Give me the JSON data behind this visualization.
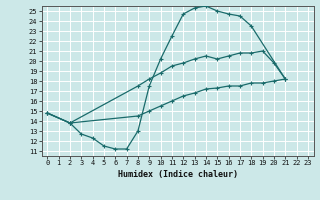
{
  "title": "",
  "xlabel": "Humidex (Indice chaleur)",
  "xlim": [
    -0.5,
    23.5
  ],
  "ylim": [
    10.5,
    25.5
  ],
  "xticks": [
    0,
    1,
    2,
    3,
    4,
    5,
    6,
    7,
    8,
    9,
    10,
    11,
    12,
    13,
    14,
    15,
    16,
    17,
    18,
    19,
    20,
    21,
    22,
    23
  ],
  "yticks": [
    11,
    12,
    13,
    14,
    15,
    16,
    17,
    18,
    19,
    20,
    21,
    22,
    23,
    24,
    25
  ],
  "bg_color": "#cce8e8",
  "grid_color": "#ffffff",
  "line_color": "#1a6b6b",
  "curve1_x": [
    0,
    2,
    3,
    4,
    5,
    6,
    7,
    8,
    9,
    10,
    11,
    12,
    13,
    14,
    15,
    16,
    17,
    18,
    21
  ],
  "curve1_y": [
    14.8,
    13.8,
    12.7,
    12.3,
    11.5,
    11.2,
    11.2,
    13.0,
    17.5,
    20.2,
    22.5,
    24.7,
    25.3,
    25.5,
    25.0,
    24.7,
    24.5,
    23.5,
    18.2
  ],
  "curve2_x": [
    0,
    2,
    8,
    9,
    10,
    11,
    12,
    13,
    14,
    15,
    16,
    17,
    18,
    19,
    20,
    21
  ],
  "curve2_y": [
    14.8,
    13.8,
    17.5,
    18.2,
    18.8,
    19.5,
    19.8,
    20.2,
    20.5,
    20.2,
    20.5,
    20.8,
    20.8,
    21.0,
    19.8,
    18.2
  ],
  "curve3_x": [
    0,
    2,
    8,
    9,
    10,
    11,
    12,
    13,
    14,
    15,
    16,
    17,
    18,
    19,
    20,
    21
  ],
  "curve3_y": [
    14.8,
    13.8,
    14.5,
    15.0,
    15.5,
    16.0,
    16.5,
    16.8,
    17.2,
    17.3,
    17.5,
    17.5,
    17.8,
    17.8,
    18.0,
    18.2
  ]
}
